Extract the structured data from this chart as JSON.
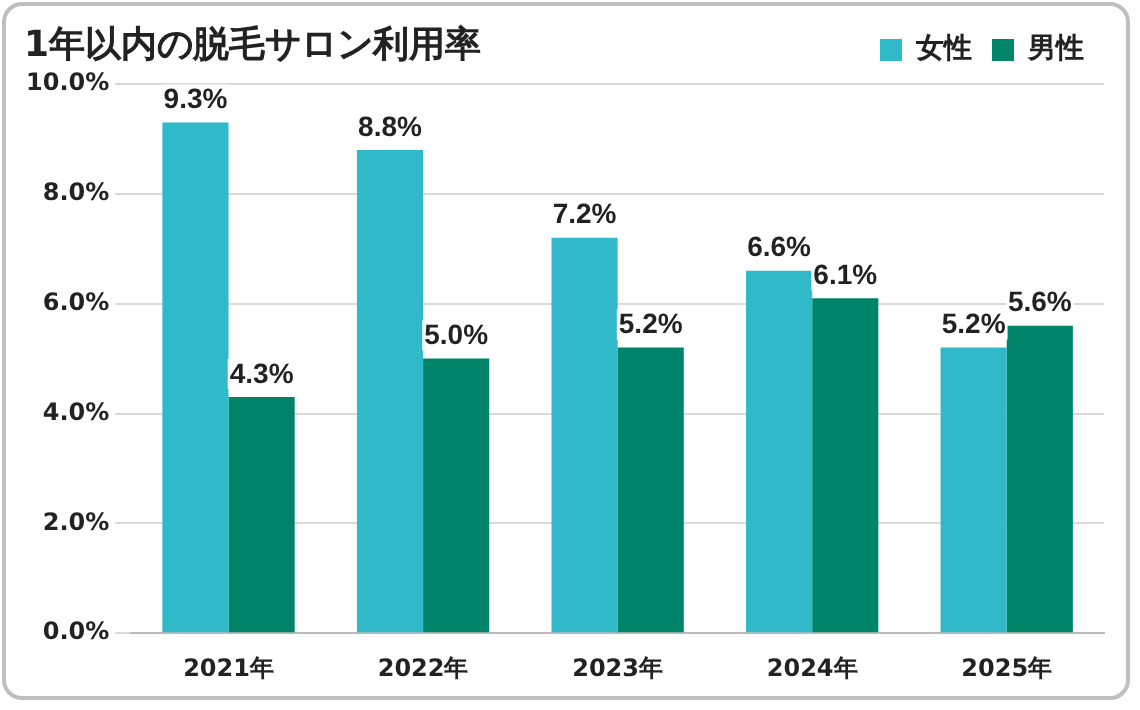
{
  "chart_data": {
    "type": "bar",
    "title": "1年以内の脱毛サロン利用率",
    "categories": [
      "2021年",
      "2022年",
      "2023年",
      "2024年",
      "2025年"
    ],
    "series": [
      {
        "name": "女性",
        "color": "#2fb9c9",
        "values": [
          9.3,
          8.8,
          7.2,
          6.6,
          5.2
        ],
        "value_labels": [
          "9.3%",
          "8.8%",
          "7.2%",
          "6.6%",
          "5.2%"
        ]
      },
      {
        "name": "男性",
        "color": "#008469",
        "values": [
          4.3,
          5.0,
          5.2,
          6.1,
          5.6
        ],
        "value_labels": [
          "4.3%",
          "5.0%",
          "5.2%",
          "6.1%",
          "5.6%"
        ]
      }
    ],
    "ylim": [
      0,
      10
    ],
    "yticks": [
      {
        "value": 0,
        "label": "0.0%"
      },
      {
        "value": 2,
        "label": "2.0%"
      },
      {
        "value": 4,
        "label": "4.0%"
      },
      {
        "value": 6,
        "label": "6.0%"
      },
      {
        "value": 8,
        "label": "8.0%"
      },
      {
        "value": 10,
        "label": "10.0%"
      }
    ],
    "grid": "y",
    "legend": "top right"
  }
}
